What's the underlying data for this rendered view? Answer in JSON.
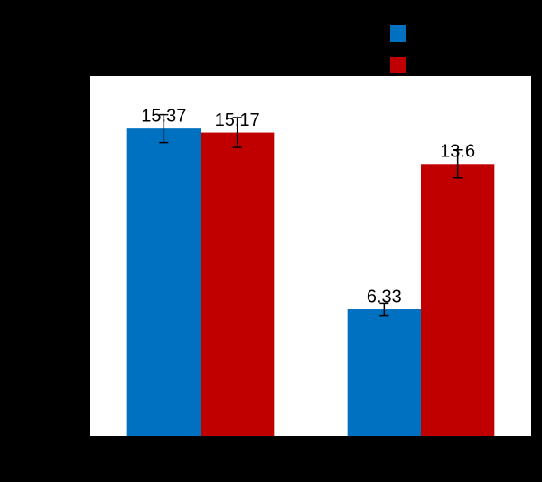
{
  "chart_data": {
    "type": "bar",
    "categories": [
      null,
      null
    ],
    "series": [
      {
        "color": "#0070c0",
        "values": [
          15.37,
          6.33
        ],
        "errors": [
          0.7,
          0.3
        ]
      },
      {
        "color": "#c00000",
        "values": [
          15.17,
          13.6
        ],
        "errors": [
          0.75,
          0.7
        ]
      }
    ],
    "ylim": [
      0,
      18
    ]
  }
}
